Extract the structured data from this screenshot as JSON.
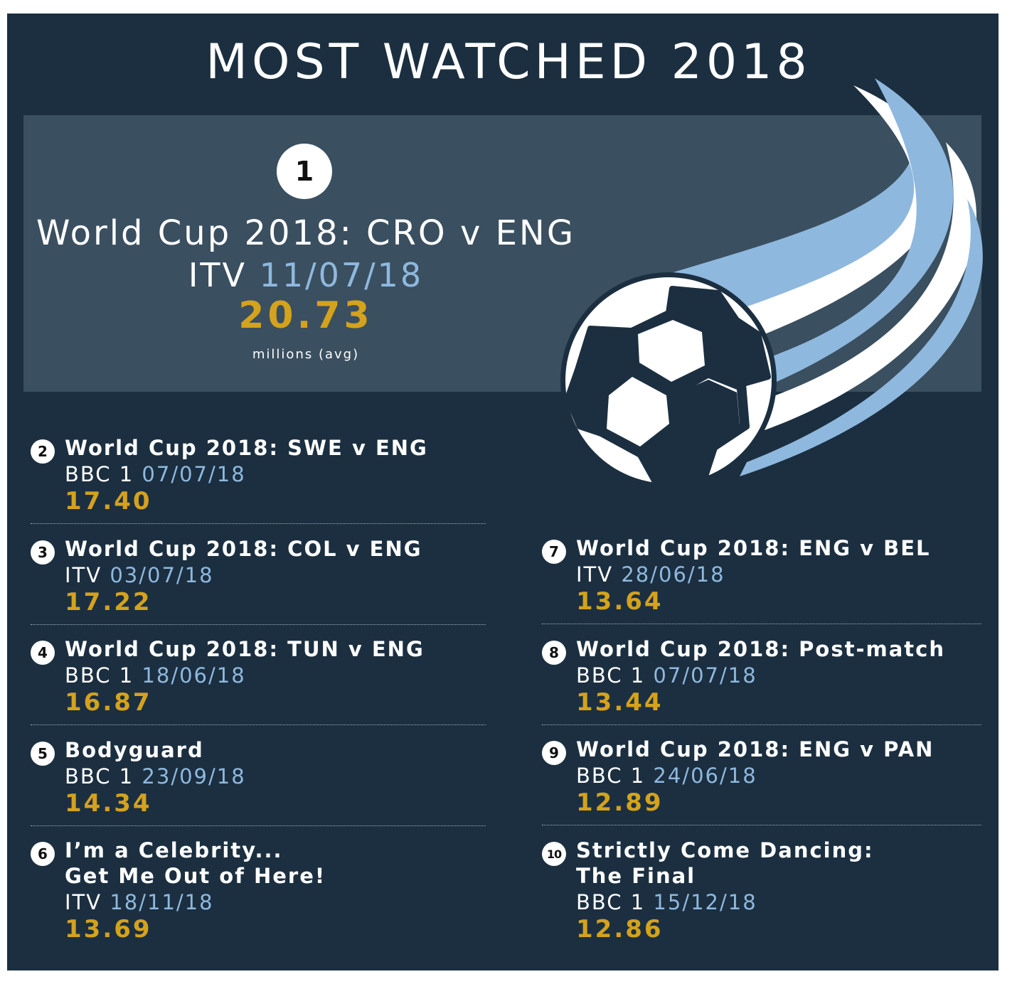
{
  "title": "MOST WATCHED 2018",
  "colors": {
    "background": "#1b2f40",
    "hero_box": "#3a4f5f",
    "value": "#d4a21c",
    "date": "#8fb8de",
    "text": "#ffffff"
  },
  "hero": {
    "rank": "1",
    "name": "World Cup 2018: CRO v ENG",
    "channel": "ITV",
    "date": "11/07/18",
    "value": "20.73",
    "unit": "millions (avg)"
  },
  "entries": [
    {
      "rank": "2",
      "name": "World Cup 2018: SWE v ENG",
      "channel": "BBC 1",
      "date": "07/07/18",
      "value": "17.40"
    },
    {
      "rank": "3",
      "name": "World Cup 2018: COL v ENG",
      "channel": "ITV",
      "date": "03/07/18",
      "value": "17.22"
    },
    {
      "rank": "4",
      "name": "World Cup 2018: TUN v ENG",
      "channel": "BBC 1",
      "date": "18/06/18",
      "value": "16.87"
    },
    {
      "rank": "5",
      "name": "Bodyguard",
      "channel": "BBC 1",
      "date": "23/09/18",
      "value": "14.34"
    },
    {
      "rank": "6",
      "name": "I’m a Celebrity...",
      "name_line2": "Get Me Out of Here!",
      "channel": "ITV",
      "date": "18/11/18",
      "value": "13.69"
    },
    {
      "rank": "7",
      "name": "World Cup 2018: ENG v BEL",
      "channel": "ITV",
      "date": "28/06/18",
      "value": "13.64"
    },
    {
      "rank": "8",
      "name": "World Cup 2018: Post-match",
      "channel": "BBC 1",
      "date": "07/07/18",
      "value": "13.44"
    },
    {
      "rank": "9",
      "name": "World Cup 2018: ENG v PAN",
      "channel": "BBC 1",
      "date": "24/06/18",
      "value": "12.89"
    },
    {
      "rank": "10",
      "name": "Strictly Come Dancing:",
      "name_line2": "The Final",
      "channel": "BBC 1",
      "date": "15/12/18",
      "value": "12.86"
    }
  ],
  "illustration": "football-icon"
}
